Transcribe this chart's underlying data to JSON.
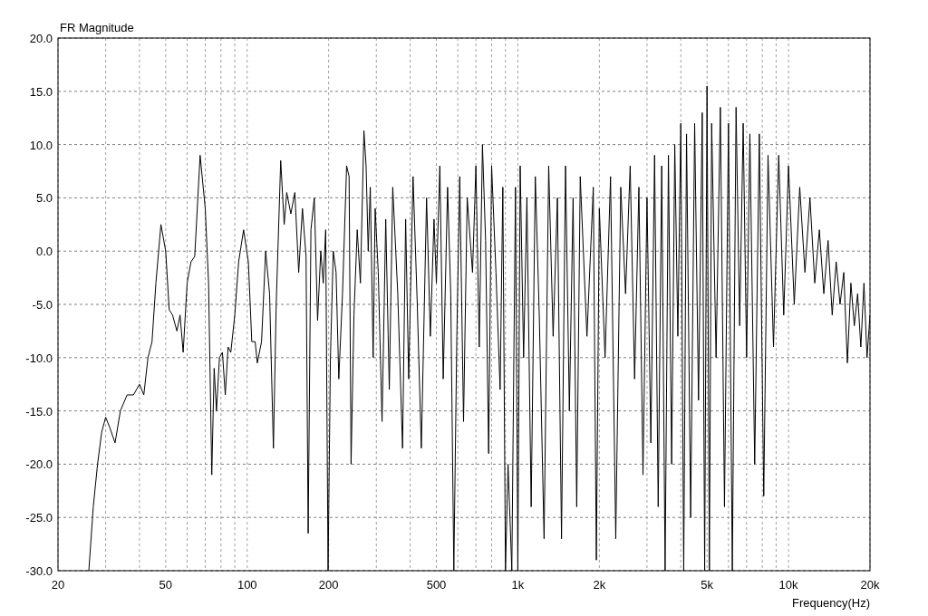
{
  "chart_data": {
    "type": "line",
    "title": "FR Magnitude",
    "xlabel": "Frequency(Hz)",
    "log": "x",
    "grid": true,
    "xlim": [
      20,
      20000
    ],
    "ylim": [
      -30,
      20
    ],
    "xticks": [
      20,
      {
        "value": 30,
        "label": null
      },
      {
        "value": 40,
        "label": null
      },
      50,
      {
        "value": 60,
        "label": null
      },
      {
        "value": 70,
        "label": null
      },
      {
        "value": 80,
        "label": null
      },
      {
        "value": 90,
        "label": null
      },
      100,
      {
        "value": 300,
        "label": null
      },
      {
        "value": 400,
        "label": null
      },
      200,
      500,
      {
        "value": 600,
        "label": null
      },
      {
        "value": 700,
        "label": null
      },
      {
        "value": 800,
        "label": null
      },
      {
        "value": 900,
        "label": null
      },
      {
        "value": 1000,
        "label": "1k"
      },
      {
        "value": 2000,
        "label": "2k"
      },
      {
        "value": 3000,
        "label": null
      },
      {
        "value": 4000,
        "label": null
      },
      {
        "value": 5000,
        "label": "5k"
      },
      {
        "value": 6000,
        "label": null
      },
      {
        "value": 7000,
        "label": null
      },
      {
        "value": 8000,
        "label": null
      },
      {
        "value": 9000,
        "label": null
      },
      {
        "value": 10000,
        "label": "10k"
      },
      {
        "value": 20000,
        "label": "20k"
      }
    ],
    "yticks": [
      {
        "value": -30,
        "label": "-30.0"
      },
      {
        "value": -25,
        "label": "-25.0"
      },
      {
        "value": -20,
        "label": "-20.0"
      },
      {
        "value": -15,
        "label": "-15.0"
      },
      {
        "value": -10,
        "label": "-10.0"
      },
      {
        "value": -5,
        "label": "-5.0"
      },
      {
        "value": 0,
        "label": "0.0"
      },
      {
        "value": 5,
        "label": "5.0"
      },
      {
        "value": 10,
        "label": "10.0"
      },
      {
        "value": 15,
        "label": "15.0"
      },
      {
        "value": 20,
        "label": "20.0"
      }
    ],
    "x": [
      26,
      27,
      28,
      29,
      30,
      31,
      32.5,
      34,
      36,
      38,
      40,
      41.5,
      43,
      44.5,
      46,
      48,
      50,
      51.5,
      53,
      55,
      56.5,
      58,
      60,
      62,
      64,
      67,
      70,
      72,
      74,
      75.5,
      77,
      79,
      81,
      83,
      85,
      87,
      90,
      93,
      97,
      101,
      104,
      107,
      109,
      113,
      117,
      121,
      125,
      128,
      133,
      137,
      140,
      145,
      150,
      155,
      160,
      165,
      168,
      172,
      177,
      182,
      187,
      191,
      195,
      199,
      203,
      208,
      213,
      218,
      225,
      233,
      238,
      242,
      248,
      255,
      262,
      270,
      275,
      280,
      285,
      292,
      297,
      305,
      315,
      325,
      335,
      345,
      360,
      375,
      385,
      395,
      410,
      425,
      440,
      460,
      475,
      490,
      500,
      515,
      530,
      550,
      565,
      580,
      595,
      610,
      630,
      650,
      680,
      700,
      720,
      740,
      760,
      780,
      800,
      830,
      860,
      880,
      900,
      920,
      950,
      980,
      1000,
      1020,
      1050,
      1080,
      1120,
      1160,
      1200,
      1250,
      1300,
      1350,
      1400,
      1450,
      1500,
      1550,
      1600,
      1650,
      1700,
      1800,
      1900,
      1950,
      2000,
      2100,
      2200,
      2300,
      2400,
      2500,
      2600,
      2700,
      2800,
      2900,
      3000,
      3100,
      3200,
      3300,
      3400,
      3500,
      3600,
      3700,
      3800,
      3900,
      4000,
      4100,
      4200,
      4350,
      4500,
      4650,
      4800,
      4900,
      5000,
      5100,
      5200,
      5400,
      5600,
      5800,
      6000,
      6200,
      6400,
      6600,
      6800,
      7000,
      7200,
      7500,
      7800,
      8100,
      8400,
      8800,
      9200,
      9600,
      10000,
      10500,
      11000,
      11500,
      12000,
      12500,
      13000,
      13500,
      14000,
      14500,
      15000,
      15500,
      16000,
      16500,
      17000,
      17500,
      18000,
      18500,
      19000,
      19500,
      20000
    ],
    "series": [
      {
        "color": "#000000",
        "values": [
          -30,
          -24,
          -20,
          -17,
          -15.6,
          -16.5,
          -18,
          -15,
          -13.5,
          -13.5,
          -12.5,
          -13.5,
          -10,
          -8.5,
          -3,
          2.5,
          0,
          -5.5,
          -6,
          -7.5,
          -6,
          -9.5,
          -3,
          -1,
          -0.5,
          9,
          4,
          -3,
          -21,
          -11,
          -15,
          -10,
          -9.5,
          -13.5,
          -9,
          -9.5,
          -6,
          -1,
          2,
          -1,
          -8.5,
          -8.5,
          -10.5,
          -8.5,
          0,
          -4,
          -18.5,
          -5,
          8.5,
          2.5,
          5.5,
          3.5,
          5.5,
          -2,
          4,
          -0.5,
          -26.5,
          2,
          5,
          -6.5,
          0,
          -3,
          2,
          -30,
          -10,
          0,
          -2,
          -12,
          -4,
          8,
          7,
          -20,
          -6,
          2,
          -3,
          11.3,
          8,
          0,
          6,
          -10,
          4,
          -2,
          -16,
          3,
          -13,
          6,
          -4,
          -18.5,
          3,
          -12,
          7,
          -5,
          -18.5,
          5,
          -8,
          3,
          -3,
          8,
          -12,
          6,
          -4,
          -30,
          -8,
          7,
          -16,
          5,
          -2,
          8,
          -9,
          10,
          1,
          -19,
          8,
          -2,
          -13,
          6,
          -30,
          -20,
          -30,
          6,
          -30,
          8,
          -10,
          5,
          -24,
          7,
          -6,
          -27,
          8,
          -8,
          5,
          -27,
          8,
          -15,
          5,
          -24,
          7,
          -8,
          6,
          -29,
          4,
          -10,
          7,
          -27,
          6,
          -4,
          8,
          -12,
          6,
          -21,
          5,
          -18,
          9,
          -24,
          8,
          -30,
          9,
          -20,
          10,
          -8,
          12,
          -30,
          11,
          -25,
          12,
          -14,
          13,
          -30,
          15.5,
          -30,
          12,
          -10,
          13.5,
          -24,
          12,
          -30,
          13.5,
          -7,
          12,
          -10,
          11,
          -20,
          11,
          -23,
          9,
          -9,
          9,
          -6,
          8,
          -5,
          6,
          -2,
          5,
          -3,
          2,
          -4,
          1,
          -6,
          -1,
          -5,
          -2,
          -10.5,
          -3,
          -7,
          -4,
          -9,
          -3,
          -10,
          -6
        ]
      }
    ]
  }
}
